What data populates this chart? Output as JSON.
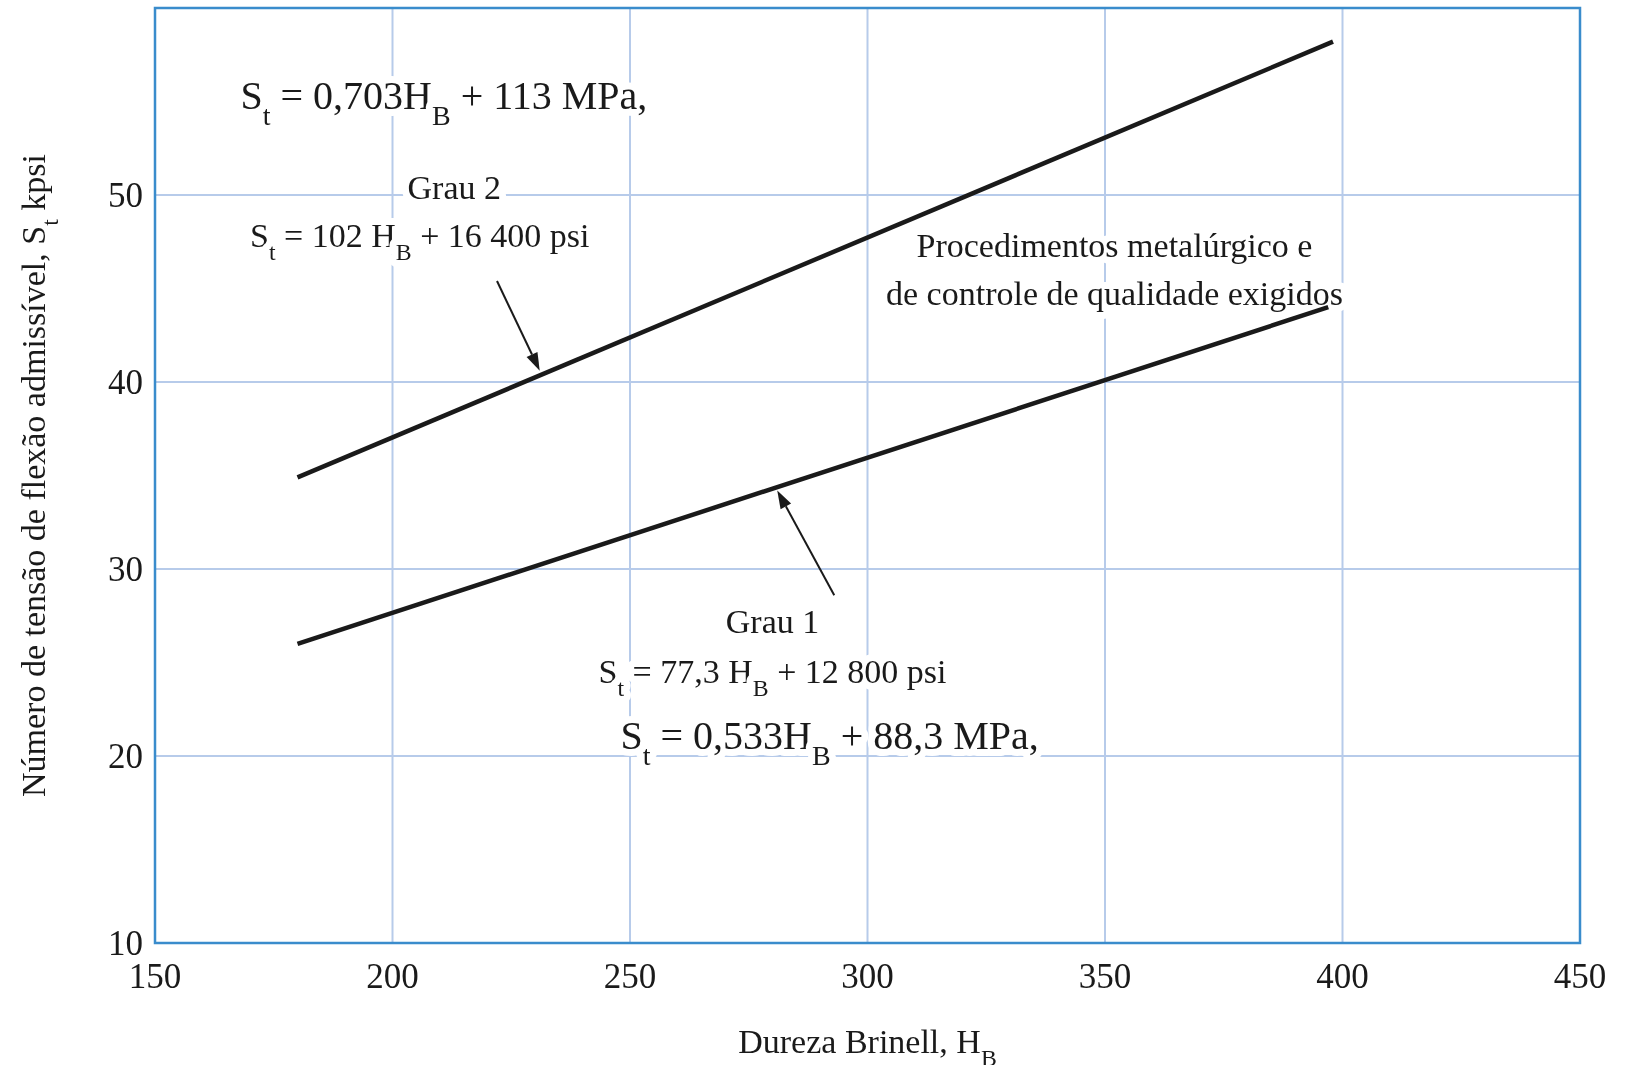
{
  "chart_data": {
    "type": "line",
    "xlabel": "Dureza Brinell, H$_{B}$",
    "ylabel": "Número de tensão de flexão admissível, S$_{t}$ kpsi",
    "series": [
      {
        "color": "#1a1a1a",
        "x": [
          180,
          398
        ],
        "values": [
          34.9,
          58.2
        ]
      },
      {
        "color": "#1a1a1a",
        "x": [
          180,
          397
        ],
        "values": [
          26.0,
          44.0
        ]
      }
    ],
    "xlim": [
      150,
      450
    ],
    "xticks": [
      150,
      200,
      250,
      300,
      350,
      400,
      450
    ],
    "ylim": [
      10,
      60
    ],
    "yticks": [
      10,
      20,
      30,
      40,
      50,
      {
        "value": 60,
        "label": null
      }
    ],
    "grid": true,
    "line_style": "solid",
    "annotations": [
      "S$_{t}$ = 0,703H$_{B}$ + 113 MPa,",
      "Grau 2",
      "S$_{t}$ = 102 H$_{B}$ + 16 400 psi",
      "Procedimentos metalúrgico e",
      "de controle de qualidade exigidos",
      "Grau 1",
      "S$_{t}$ = 77,3 H$_{B}$ + 12 800 psi",
      "S$_{t}$ = 0,533H$_{B}$ + 88,3 MPa,"
    ]
  }
}
